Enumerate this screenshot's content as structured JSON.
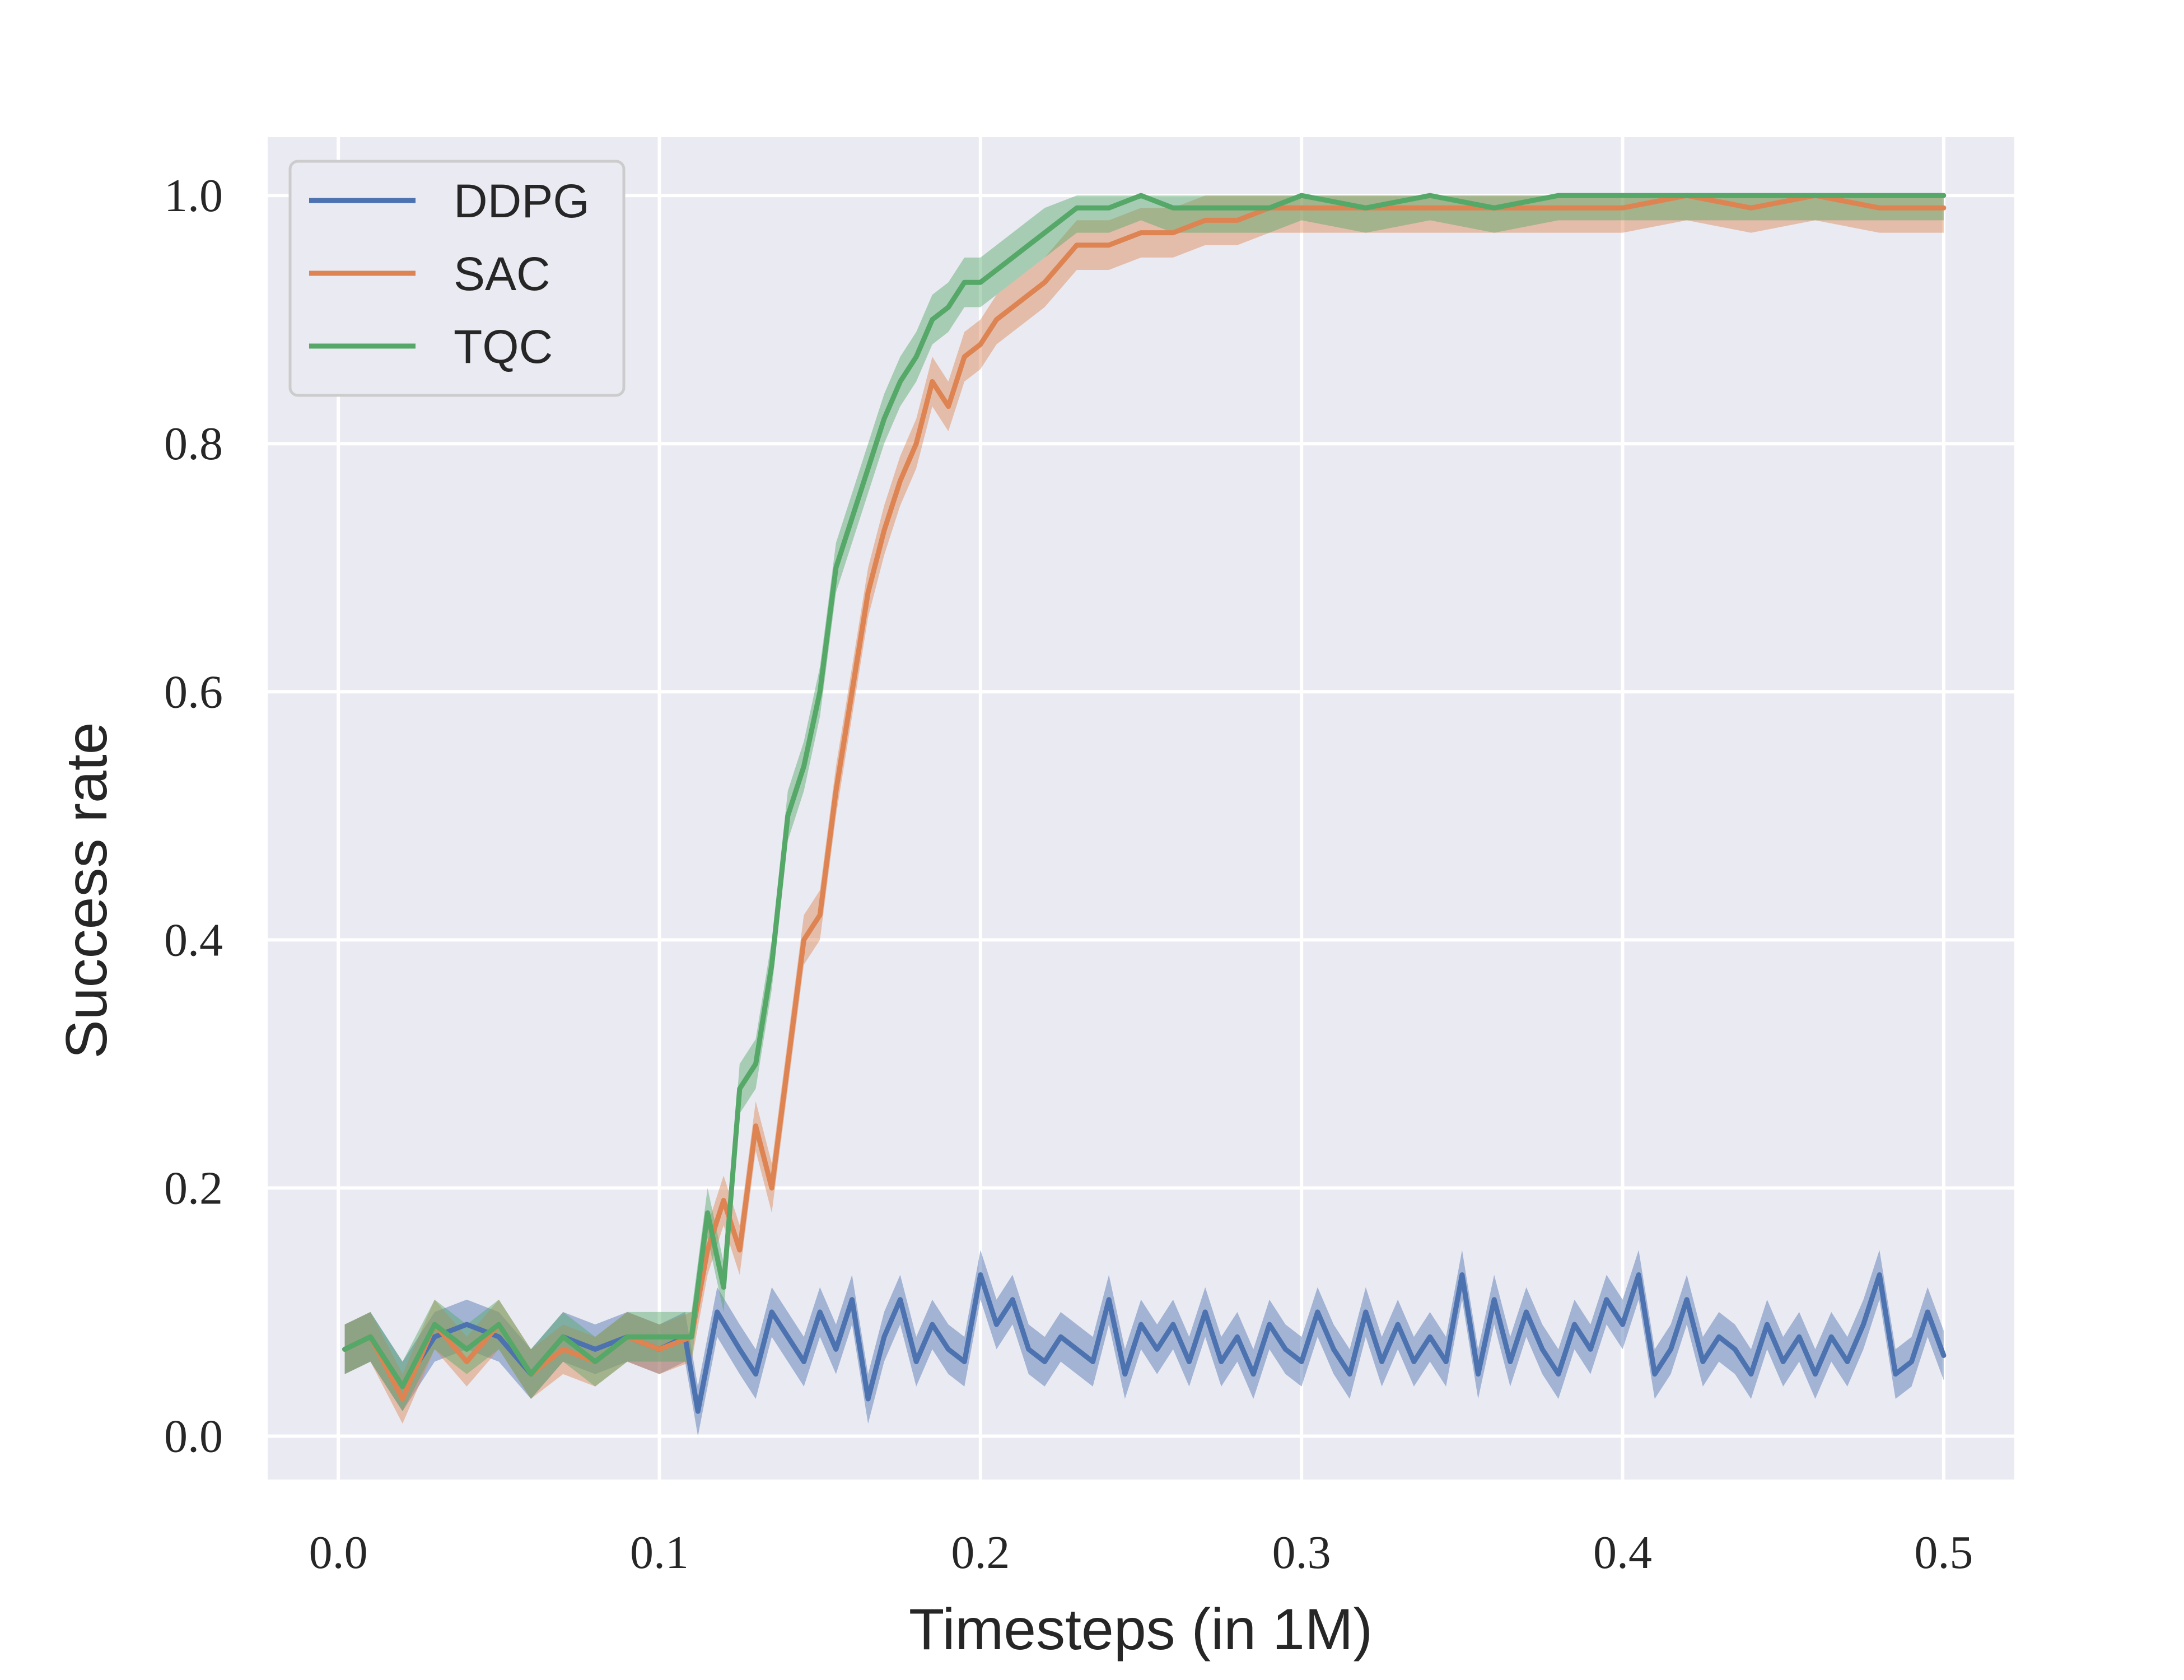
{
  "chart_data": {
    "type": "line",
    "title": "",
    "xlabel": "Timesteps (in 1M)",
    "ylabel": "Success rate",
    "xlim": [
      -0.022,
      0.522
    ],
    "ylim": [
      -0.035,
      1.047
    ],
    "xticks": [
      "0.0",
      "0.1",
      "0.2",
      "0.3",
      "0.4",
      "0.5"
    ],
    "xtick_values": [
      0.0,
      0.1,
      0.2,
      0.3,
      0.4,
      0.5
    ],
    "yticks": [
      "0.0",
      "0.2",
      "0.4",
      "0.6",
      "0.8",
      "1.0"
    ],
    "ytick_values": [
      0.0,
      0.2,
      0.4,
      0.6,
      0.8,
      1.0
    ],
    "grid": true,
    "legend_position": "top-left",
    "background": "#eaeaf2",
    "series": [
      {
        "name": "DDPG",
        "color": "#4c72b0",
        "shaded_band": true,
        "points": [
          [
            0.002,
            0.07
          ],
          [
            0.01,
            0.08
          ],
          [
            0.02,
            0.04
          ],
          [
            0.03,
            0.08
          ],
          [
            0.04,
            0.09
          ],
          [
            0.05,
            0.08
          ],
          [
            0.06,
            0.05
          ],
          [
            0.07,
            0.08
          ],
          [
            0.08,
            0.07
          ],
          [
            0.09,
            0.08
          ],
          [
            0.1,
            0.07
          ],
          [
            0.108,
            0.08
          ],
          [
            0.112,
            0.02
          ],
          [
            0.118,
            0.1
          ],
          [
            0.125,
            0.07
          ],
          [
            0.13,
            0.05
          ],
          [
            0.135,
            0.1
          ],
          [
            0.14,
            0.08
          ],
          [
            0.145,
            0.06
          ],
          [
            0.15,
            0.1
          ],
          [
            0.155,
            0.07
          ],
          [
            0.16,
            0.11
          ],
          [
            0.165,
            0.03
          ],
          [
            0.17,
            0.08
          ],
          [
            0.175,
            0.11
          ],
          [
            0.18,
            0.06
          ],
          [
            0.185,
            0.09
          ],
          [
            0.19,
            0.07
          ],
          [
            0.195,
            0.06
          ],
          [
            0.2,
            0.13
          ],
          [
            0.205,
            0.09
          ],
          [
            0.21,
            0.11
          ],
          [
            0.215,
            0.07
          ],
          [
            0.22,
            0.06
          ],
          [
            0.225,
            0.08
          ],
          [
            0.23,
            0.07
          ],
          [
            0.235,
            0.06
          ],
          [
            0.24,
            0.11
          ],
          [
            0.245,
            0.05
          ],
          [
            0.25,
            0.09
          ],
          [
            0.255,
            0.07
          ],
          [
            0.26,
            0.09
          ],
          [
            0.265,
            0.06
          ],
          [
            0.27,
            0.1
          ],
          [
            0.275,
            0.06
          ],
          [
            0.28,
            0.08
          ],
          [
            0.285,
            0.05
          ],
          [
            0.29,
            0.09
          ],
          [
            0.295,
            0.07
          ],
          [
            0.3,
            0.06
          ],
          [
            0.305,
            0.1
          ],
          [
            0.31,
            0.07
          ],
          [
            0.315,
            0.05
          ],
          [
            0.32,
            0.1
          ],
          [
            0.325,
            0.06
          ],
          [
            0.33,
            0.09
          ],
          [
            0.335,
            0.06
          ],
          [
            0.34,
            0.08
          ],
          [
            0.345,
            0.06
          ],
          [
            0.35,
            0.13
          ],
          [
            0.355,
            0.05
          ],
          [
            0.36,
            0.11
          ],
          [
            0.365,
            0.06
          ],
          [
            0.37,
            0.1
          ],
          [
            0.375,
            0.07
          ],
          [
            0.38,
            0.05
          ],
          [
            0.385,
            0.09
          ],
          [
            0.39,
            0.07
          ],
          [
            0.395,
            0.11
          ],
          [
            0.4,
            0.09
          ],
          [
            0.405,
            0.13
          ],
          [
            0.41,
            0.05
          ],
          [
            0.415,
            0.07
          ],
          [
            0.42,
            0.11
          ],
          [
            0.425,
            0.06
          ],
          [
            0.43,
            0.08
          ],
          [
            0.435,
            0.07
          ],
          [
            0.44,
            0.05
          ],
          [
            0.445,
            0.09
          ],
          [
            0.45,
            0.06
          ],
          [
            0.455,
            0.08
          ],
          [
            0.46,
            0.05
          ],
          [
            0.465,
            0.08
          ],
          [
            0.47,
            0.06
          ],
          [
            0.475,
            0.09
          ],
          [
            0.48,
            0.13
          ],
          [
            0.485,
            0.05
          ],
          [
            0.49,
            0.06
          ],
          [
            0.495,
            0.1
          ],
          [
            0.5,
            0.065
          ]
        ]
      },
      {
        "name": "SAC",
        "color": "#dd8452",
        "shaded_band": true,
        "points": [
          [
            0.002,
            0.07
          ],
          [
            0.01,
            0.08
          ],
          [
            0.02,
            0.03
          ],
          [
            0.03,
            0.09
          ],
          [
            0.04,
            0.06
          ],
          [
            0.05,
            0.09
          ],
          [
            0.06,
            0.05
          ],
          [
            0.07,
            0.07
          ],
          [
            0.08,
            0.06
          ],
          [
            0.09,
            0.08
          ],
          [
            0.1,
            0.07
          ],
          [
            0.11,
            0.08
          ],
          [
            0.115,
            0.15
          ],
          [
            0.12,
            0.19
          ],
          [
            0.125,
            0.15
          ],
          [
            0.13,
            0.25
          ],
          [
            0.135,
            0.2
          ],
          [
            0.14,
            0.3
          ],
          [
            0.145,
            0.4
          ],
          [
            0.15,
            0.42
          ],
          [
            0.155,
            0.52
          ],
          [
            0.16,
            0.6
          ],
          [
            0.165,
            0.68
          ],
          [
            0.17,
            0.73
          ],
          [
            0.175,
            0.77
          ],
          [
            0.18,
            0.8
          ],
          [
            0.185,
            0.85
          ],
          [
            0.19,
            0.83
          ],
          [
            0.195,
            0.87
          ],
          [
            0.2,
            0.88
          ],
          [
            0.205,
            0.9
          ],
          [
            0.21,
            0.91
          ],
          [
            0.215,
            0.92
          ],
          [
            0.22,
            0.93
          ],
          [
            0.23,
            0.96
          ],
          [
            0.24,
            0.96
          ],
          [
            0.25,
            0.97
          ],
          [
            0.26,
            0.97
          ],
          [
            0.27,
            0.98
          ],
          [
            0.28,
            0.98
          ],
          [
            0.29,
            0.99
          ],
          [
            0.3,
            0.99
          ],
          [
            0.32,
            0.99
          ],
          [
            0.34,
            0.99
          ],
          [
            0.36,
            0.99
          ],
          [
            0.38,
            0.99
          ],
          [
            0.4,
            0.99
          ],
          [
            0.42,
            1.0
          ],
          [
            0.44,
            0.99
          ],
          [
            0.46,
            1.0
          ],
          [
            0.48,
            0.99
          ],
          [
            0.5,
            0.99
          ]
        ]
      },
      {
        "name": "TQC",
        "color": "#55a868",
        "shaded_band": true,
        "points": [
          [
            0.002,
            0.07
          ],
          [
            0.01,
            0.08
          ],
          [
            0.02,
            0.04
          ],
          [
            0.03,
            0.09
          ],
          [
            0.04,
            0.07
          ],
          [
            0.05,
            0.09
          ],
          [
            0.06,
            0.05
          ],
          [
            0.07,
            0.08
          ],
          [
            0.08,
            0.06
          ],
          [
            0.09,
            0.08
          ],
          [
            0.1,
            0.08
          ],
          [
            0.11,
            0.08
          ],
          [
            0.115,
            0.18
          ],
          [
            0.12,
            0.12
          ],
          [
            0.125,
            0.28
          ],
          [
            0.13,
            0.3
          ],
          [
            0.135,
            0.38
          ],
          [
            0.14,
            0.5
          ],
          [
            0.145,
            0.54
          ],
          [
            0.15,
            0.6
          ],
          [
            0.155,
            0.7
          ],
          [
            0.16,
            0.74
          ],
          [
            0.165,
            0.78
          ],
          [
            0.17,
            0.82
          ],
          [
            0.175,
            0.85
          ],
          [
            0.18,
            0.87
          ],
          [
            0.185,
            0.9
          ],
          [
            0.19,
            0.91
          ],
          [
            0.195,
            0.93
          ],
          [
            0.2,
            0.93
          ],
          [
            0.205,
            0.94
          ],
          [
            0.21,
            0.95
          ],
          [
            0.215,
            0.96
          ],
          [
            0.22,
            0.97
          ],
          [
            0.23,
            0.99
          ],
          [
            0.24,
            0.99
          ],
          [
            0.25,
            1.0
          ],
          [
            0.26,
            0.99
          ],
          [
            0.27,
            0.99
          ],
          [
            0.28,
            0.99
          ],
          [
            0.29,
            0.99
          ],
          [
            0.3,
            1.0
          ],
          [
            0.32,
            0.99
          ],
          [
            0.34,
            1.0
          ],
          [
            0.36,
            0.99
          ],
          [
            0.38,
            1.0
          ],
          [
            0.4,
            1.0
          ],
          [
            0.42,
            1.0
          ],
          [
            0.44,
            1.0
          ],
          [
            0.46,
            1.0
          ],
          [
            0.48,
            1.0
          ],
          [
            0.5,
            1.0
          ]
        ]
      }
    ]
  }
}
